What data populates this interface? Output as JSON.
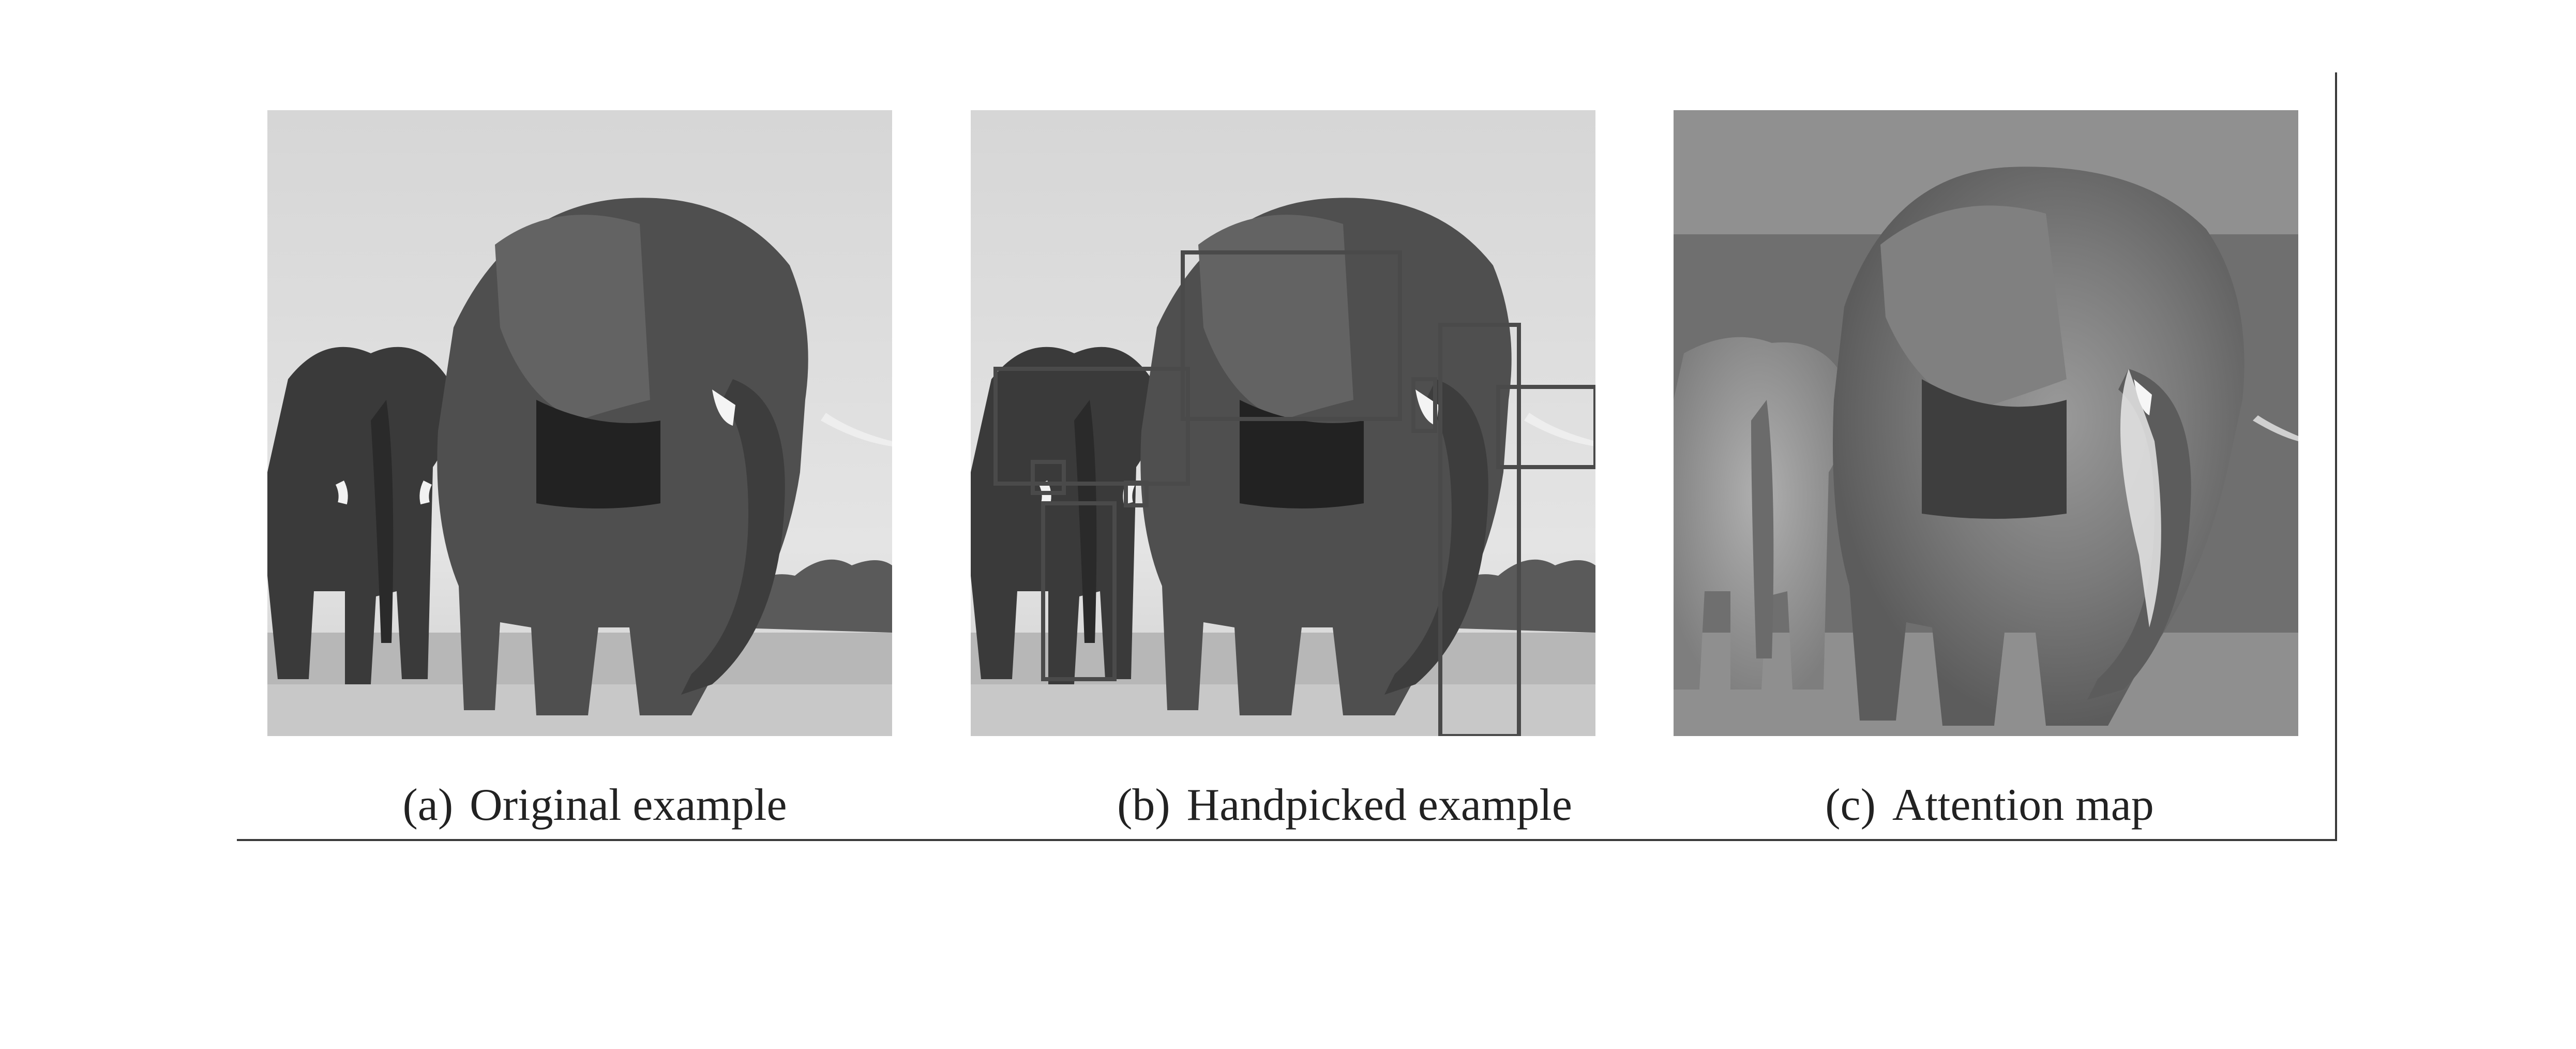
{
  "figure": {
    "panels": [
      {
        "tag": "(a)",
        "label": "Original example"
      },
      {
        "tag": "(b)",
        "label": "Handpicked example"
      },
      {
        "tag": "(c)",
        "label": "Attention map"
      }
    ]
  },
  "colors": {
    "sky": "#d9d9d9",
    "elephant": "#555555",
    "elephant_dark": "#2c2c2c",
    "ground": "#b5b5b5",
    "box_stroke": "#4a4a4a"
  }
}
